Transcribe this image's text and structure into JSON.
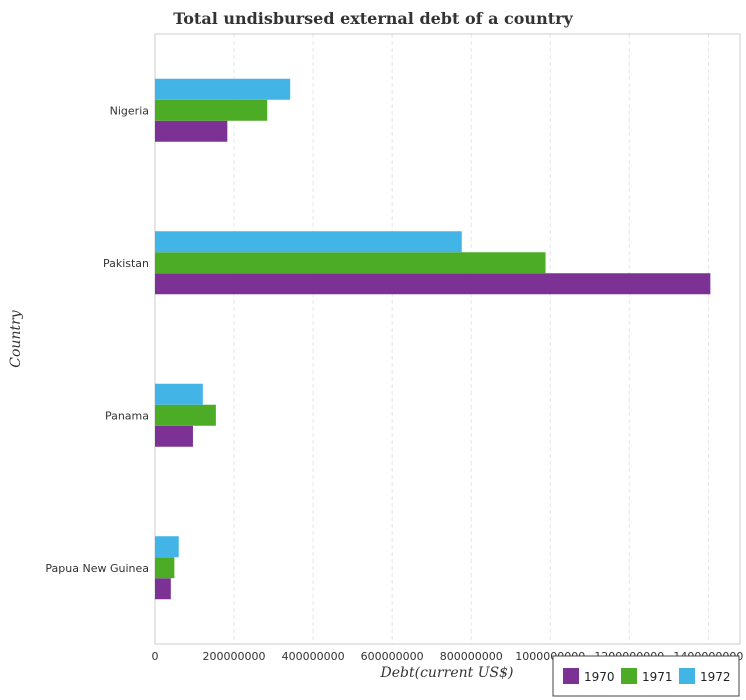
{
  "chart_data": {
    "type": "bar",
    "orientation": "horizontal",
    "title": "Total undisbursed external debt of a country",
    "xlabel": "Debt(current US$)",
    "ylabel": "Country",
    "categories": [
      "Nigeria",
      "Pakistan",
      "Panama",
      "Papua New Guinea"
    ],
    "series": [
      {
        "name": "1970",
        "color": "#7b3294",
        "values": [
          183000000,
          1405000000,
          96000000,
          40000000
        ]
      },
      {
        "name": "1971",
        "color": "#4dac26",
        "values": [
          284000000,
          988000000,
          154000000,
          49000000
        ]
      },
      {
        "name": "1972",
        "color": "#42b4e6",
        "values": [
          342000000,
          776000000,
          121000000,
          60000000
        ]
      }
    ],
    "xlim": [
      0,
      1480000000
    ],
    "xticks": [
      0,
      200000000,
      400000000,
      600000000,
      800000000,
      1000000000,
      1200000000,
      1400000000
    ],
    "xtick_labels": [
      "0",
      "200000000",
      "400000000",
      "600000000",
      "800000000",
      "1000000000",
      "1200000000",
      "1400000000"
    ],
    "grid": true,
    "legend_position": "bottom-right"
  }
}
